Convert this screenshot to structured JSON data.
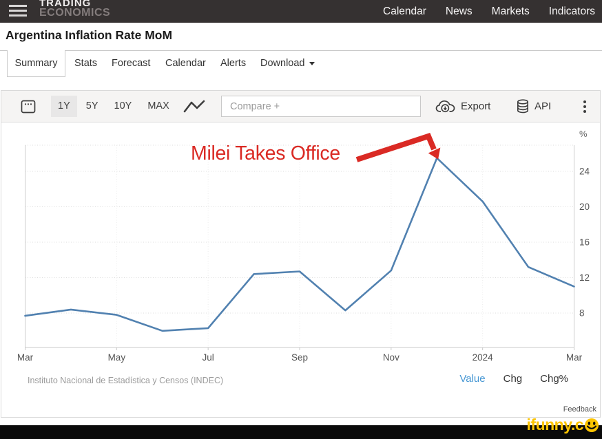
{
  "header": {
    "logo_line1": "TRADING",
    "logo_line2": "ECONOMICS",
    "nav": [
      {
        "label": "Calendar"
      },
      {
        "label": "News"
      },
      {
        "label": "Markets"
      },
      {
        "label": "Indicators"
      }
    ]
  },
  "page_title": "Argentina Inflation Rate MoM",
  "tabs": [
    {
      "label": "Summary",
      "active": true
    },
    {
      "label": "Stats",
      "active": false
    },
    {
      "label": "Forecast",
      "active": false
    },
    {
      "label": "Calendar",
      "active": false
    },
    {
      "label": "Alerts",
      "active": false
    },
    {
      "label": "Download",
      "active": false,
      "has_caret": true
    }
  ],
  "toolbar": {
    "ranges": [
      "1Y",
      "5Y",
      "10Y",
      "MAX"
    ],
    "active_range": "1Y",
    "compare_placeholder": "Compare +",
    "export_label": "Export",
    "api_label": "API",
    "icons": [
      "calendar-icon",
      "line-chart-icon",
      "cloud-download-icon",
      "database-icon",
      "kebab-icon"
    ]
  },
  "chart_data": {
    "type": "line",
    "title": "Argentina Inflation Rate MoM",
    "x": [
      "Mar 2023",
      "Apr 2023",
      "May 2023",
      "Jun 2023",
      "Jul 2023",
      "Aug 2023",
      "Sep 2023",
      "Oct 2023",
      "Nov 2023",
      "Dec 2023",
      "Jan 2024",
      "Feb 2024",
      "Mar 2024"
    ],
    "values": [
      7.7,
      8.4,
      7.8,
      6.0,
      6.3,
      12.4,
      12.7,
      8.3,
      12.8,
      25.5,
      20.6,
      13.2,
      11.0
    ],
    "x_tick_indices": [
      0,
      2,
      4,
      6,
      8,
      10,
      12
    ],
    "x_tick_labels": [
      "Mar",
      "May",
      "Jul",
      "Sep",
      "Nov",
      "2024",
      "Mar"
    ],
    "y_ticks": [
      8,
      12,
      16,
      20,
      24
    ],
    "y_unit": "%",
    "ylim": [
      4.1,
      26.6
    ],
    "grid": true,
    "legend_position": "none",
    "annotation": {
      "text": "Milei Takes Office",
      "color": "#da2a24",
      "points_to": "Dec 2023 peak 25.5"
    }
  },
  "footer": {
    "source": "Instituto Nacional de Estadística y Censos (INDEC)",
    "legend": [
      {
        "label": "Value",
        "active": true
      },
      {
        "label": "Chg",
        "active": false
      },
      {
        "label": "Chg%",
        "active": false
      }
    ],
    "feedback": "Feedback"
  },
  "watermark": {
    "text": "ifunny.c"
  },
  "colors": {
    "line": "#5181b0",
    "annotation_red": "#da2a24",
    "accent_blue": "#4596d3",
    "watermark_yellow": "#fcc400",
    "topbar_bg": "#353131"
  }
}
